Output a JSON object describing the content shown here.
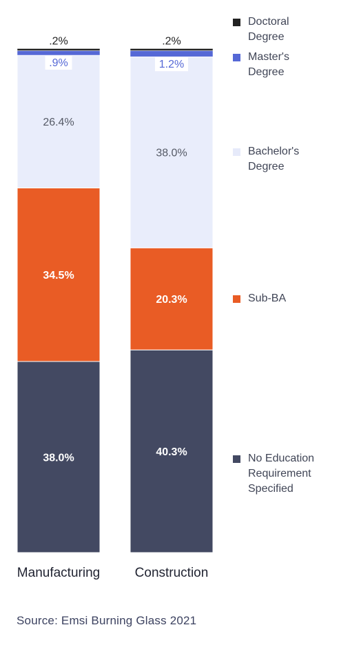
{
  "chart_data": {
    "type": "bar",
    "stacked": true,
    "normalized_percent": true,
    "categories": [
      "Manufacturing",
      "Construction"
    ],
    "series": [
      {
        "name": "No Education Requirement Specified",
        "color": "#434962",
        "values": [
          38.0,
          40.3
        ],
        "labels": [
          "38.0%",
          "40.3%"
        ]
      },
      {
        "name": "Sub-BA",
        "color": "#e95c25",
        "values": [
          34.5,
          20.3
        ],
        "labels": [
          "34.5%",
          "20.3%"
        ]
      },
      {
        "name": "Bachelor's Degree",
        "color": "#e9edfb",
        "values": [
          26.4,
          38.0
        ],
        "labels": [
          "26.4%",
          "38.0%"
        ]
      },
      {
        "name": "Master's Degree",
        "color": "#5568d6",
        "values": [
          0.9,
          1.2
        ],
        "labels": [
          ".9%",
          "1.2%"
        ]
      },
      {
        "name": "Doctoral Degree",
        "color": "#222222",
        "values": [
          0.2,
          0.2
        ],
        "labels": [
          ".2%",
          ".2%"
        ]
      }
    ],
    "legend_position": "right",
    "grid": false
  },
  "legend": [
    {
      "label": "Doctoral\nDegree",
      "color": "#222222"
    },
    {
      "label": "Master's\nDegree",
      "color": "#5568d6"
    },
    {
      "label": "Bachelor's\nDegree",
      "color": "#e9edfb"
    },
    {
      "label": "Sub-BA",
      "color": "#e95c25"
    },
    {
      "label": "No Education\nRequirement\nSpecified",
      "color": "#434962"
    }
  ],
  "source": "Source: Emsi Burning Glass 2021"
}
